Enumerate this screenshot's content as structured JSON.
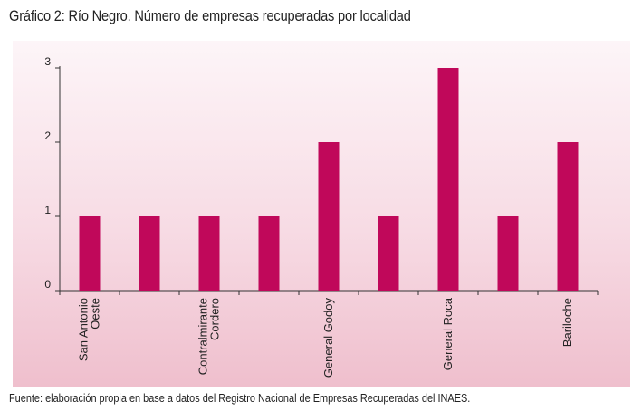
{
  "title": "Gráfico 2: Río Negro. Número de empresas recuperadas por localidad",
  "source": "Fuente: elaboración propia en base a datos del Registro Nacional de Empresas Recuperadas del INAES.",
  "colors": {
    "bar": "#c0085a",
    "axis": "#333333",
    "text": "#222222"
  },
  "chart_data": {
    "type": "bar",
    "title": "Gráfico 2: Río Negro. Número de empresas recuperadas por localidad",
    "xlabel": "",
    "ylabel": "",
    "ylim": [
      0,
      3
    ],
    "yticks": [
      0,
      1,
      2,
      3
    ],
    "grid": false,
    "legend": "none",
    "values": [
      1,
      1,
      1,
      1,
      2,
      1,
      3,
      1,
      2
    ],
    "tick_labels": [
      {
        "index": 0,
        "lines": [
          "San Antonio",
          "Oeste"
        ]
      },
      {
        "index": 2,
        "lines": [
          "Contralmirante",
          "Cordero"
        ]
      },
      {
        "index": 4,
        "lines": [
          "General Godoy"
        ]
      },
      {
        "index": 6,
        "lines": [
          "General Roca"
        ]
      },
      {
        "index": 8,
        "lines": [
          "Bariloche"
        ]
      }
    ]
  }
}
